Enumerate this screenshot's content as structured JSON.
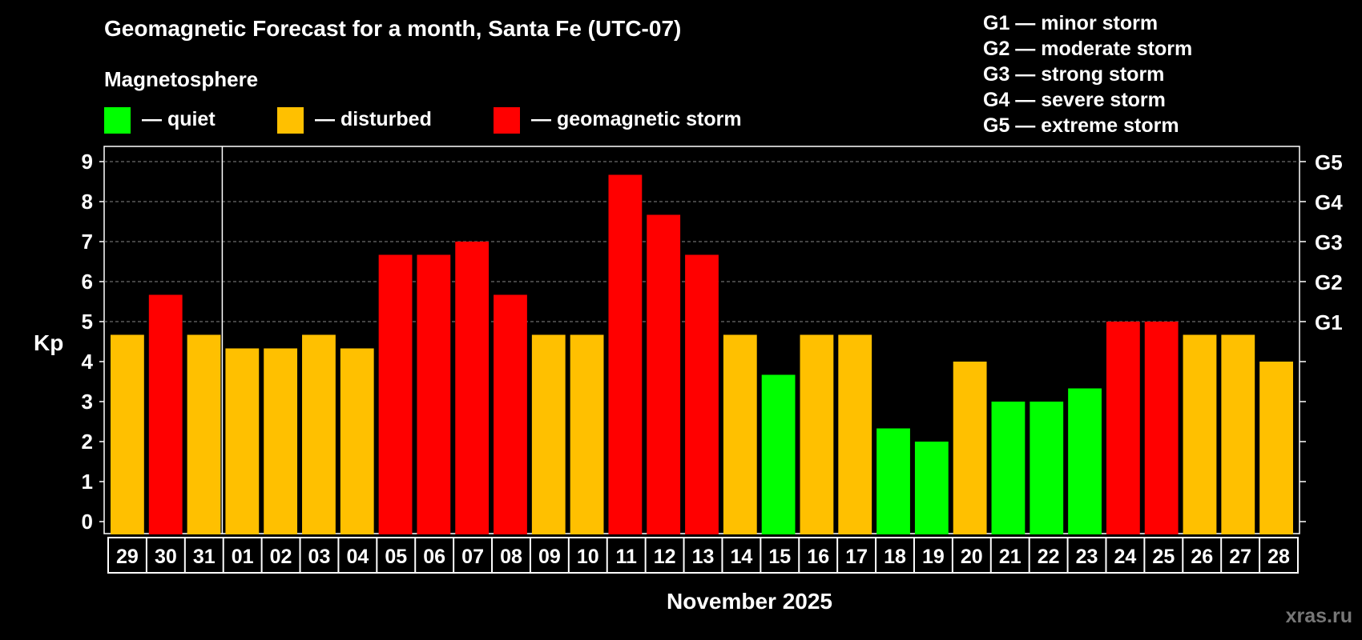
{
  "colors": {
    "quiet": "#00ff00",
    "disturbed": "#ffc000",
    "storm": "#ff0000",
    "grid": "#888888",
    "background": "#000000"
  },
  "legend": {
    "heading": "Magnetosphere",
    "quiet": "— quiet",
    "disturbed": "— disturbed",
    "storm": "— geomagnetic storm"
  },
  "g_scale": [
    "G1 — minor storm",
    "G2 — moderate storm",
    "G3 — strong storm",
    "G4 — severe storm",
    "G5 — extreme storm"
  ],
  "watermark": "xras.ru",
  "chart_data": {
    "type": "bar",
    "title": "Geomagnetic Forecast for a month, Santa Fe (UTC-07)",
    "xlabel": "November 2025",
    "ylabel": "Kp",
    "ylim": [
      0,
      9
    ],
    "yticks": [
      "0",
      "1",
      "2",
      "3",
      "4",
      "5",
      "6",
      "7",
      "8",
      "9"
    ],
    "right_axis": [
      {
        "label": "G1",
        "kp": 5
      },
      {
        "label": "G2",
        "kp": 6
      },
      {
        "label": "G3",
        "kp": 7
      },
      {
        "label": "G4",
        "kp": 8
      },
      {
        "label": "G5",
        "kp": 9
      }
    ],
    "grid": "dashed at Kp 5 to 9",
    "categories": [
      "29",
      "30",
      "31",
      "01",
      "02",
      "03",
      "04",
      "05",
      "06",
      "07",
      "08",
      "09",
      "10",
      "11",
      "12",
      "13",
      "14",
      "15",
      "16",
      "17",
      "18",
      "19",
      "20",
      "21",
      "22",
      "23",
      "24",
      "25",
      "26",
      "27",
      "28"
    ],
    "values": [
      4.67,
      5.67,
      4.67,
      4.33,
      4.33,
      4.67,
      4.33,
      6.67,
      6.67,
      7,
      5.67,
      4.67,
      4.67,
      8.67,
      7.67,
      6.67,
      4.67,
      3.67,
      4.67,
      4.67,
      2.33,
      2,
      4,
      3,
      3,
      3.33,
      5,
      5,
      4.67,
      4.67,
      4
    ],
    "levels": [
      "disturbed",
      "storm",
      "disturbed",
      "disturbed",
      "disturbed",
      "disturbed",
      "disturbed",
      "storm",
      "storm",
      "storm",
      "storm",
      "disturbed",
      "disturbed",
      "storm",
      "storm",
      "storm",
      "disturbed",
      "quiet",
      "disturbed",
      "disturbed",
      "quiet",
      "quiet",
      "disturbed",
      "quiet",
      "quiet",
      "quiet",
      "storm",
      "storm",
      "disturbed",
      "disturbed",
      "disturbed"
    ],
    "month_boundary_after": "31"
  }
}
